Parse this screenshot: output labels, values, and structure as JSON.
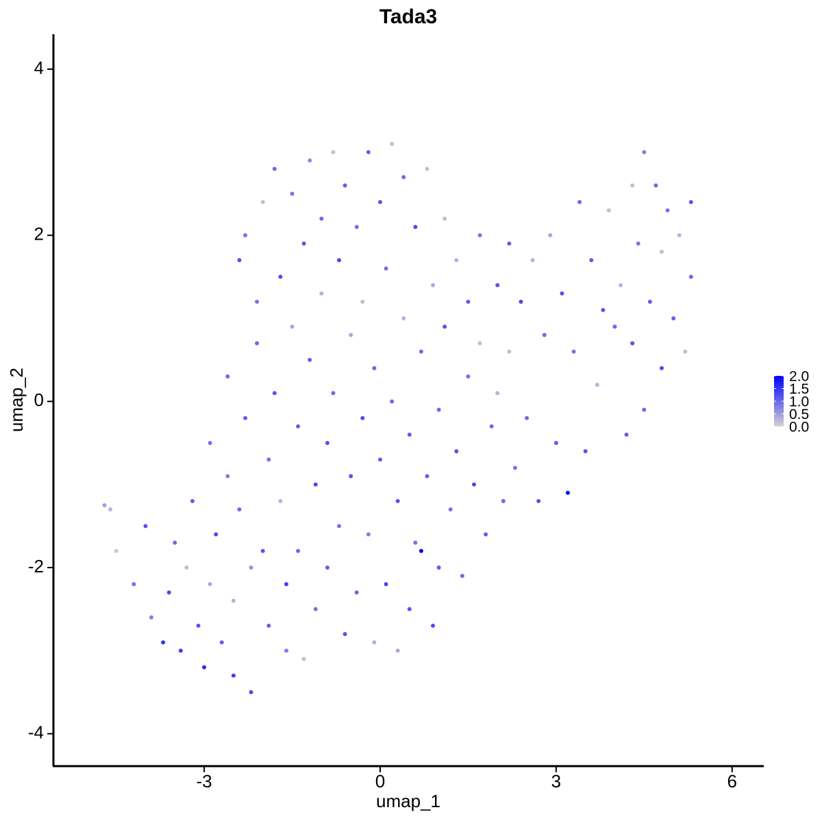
{
  "chart_data": {
    "type": "scatter",
    "title": "Tada3",
    "x_label": "umap_1",
    "y_label": "umap_2",
    "xlim": [
      -5.57,
      6.54
    ],
    "ylim": [
      -4.39,
      4.42
    ],
    "xticks": [
      -3,
      0,
      3,
      6
    ],
    "yticks": [
      -4,
      -2,
      0,
      2,
      4
    ],
    "x": [
      -4.7,
      -4.6,
      -4.5,
      -4.2,
      -4.0,
      -3.9,
      -3.7,
      -3.6,
      -3.5,
      -3.4,
      -3.3,
      -3.2,
      -3.1,
      -3.0,
      -2.9,
      -2.9,
      -2.8,
      -2.7,
      -2.6,
      -2.6,
      -2.5,
      -2.5,
      -2.4,
      -2.4,
      -2.3,
      -2.3,
      -2.2,
      -2.2,
      -2.1,
      -2.1,
      -2.0,
      -2.0,
      -1.9,
      -1.9,
      -1.8,
      -1.8,
      -1.7,
      -1.7,
      -1.6,
      -1.6,
      -1.5,
      -1.5,
      -1.4,
      -1.4,
      -1.3,
      -1.3,
      -1.2,
      -1.2,
      -1.1,
      -1.1,
      -1.0,
      -1.0,
      -0.9,
      -0.9,
      -0.8,
      -0.8,
      -0.7,
      -0.7,
      -0.6,
      -0.6,
      -0.5,
      -0.5,
      -0.4,
      -0.4,
      -0.3,
      -0.3,
      -0.2,
      -0.2,
      -0.1,
      -0.1,
      0.0,
      0.0,
      0.1,
      0.1,
      0.2,
      0.2,
      0.3,
      0.3,
      0.4,
      0.4,
      0.5,
      0.5,
      0.6,
      0.6,
      0.7,
      0.7,
      0.8,
      0.8,
      0.9,
      0.9,
      1.0,
      1.0,
      1.1,
      1.1,
      1.2,
      1.3,
      1.3,
      1.4,
      1.5,
      1.5,
      1.6,
      1.7,
      1.7,
      1.8,
      1.9,
      2.0,
      2.0,
      2.1,
      2.2,
      2.2,
      2.3,
      2.4,
      2.5,
      2.6,
      2.7,
      2.8,
      2.9,
      3.0,
      3.1,
      3.2,
      3.3,
      3.4,
      3.5,
      3.6,
      3.7,
      3.8,
      3.9,
      4.0,
      4.1,
      4.2,
      4.3,
      4.3,
      4.4,
      4.5,
      4.5,
      4.6,
      4.7,
      4.8,
      4.8,
      4.9,
      5.0,
      5.1,
      5.2,
      5.3,
      5.3
    ],
    "y": [
      -1.25,
      -1.3,
      -1.8,
      -2.2,
      -1.5,
      -2.6,
      -2.9,
      -2.3,
      -1.7,
      -3.0,
      -2.0,
      -1.2,
      -2.7,
      -3.2,
      -0.5,
      -2.2,
      -1.6,
      -2.9,
      0.3,
      -0.9,
      -3.3,
      -2.4,
      1.7,
      -1.3,
      2.0,
      -0.2,
      -3.5,
      -2.0,
      1.2,
      0.7,
      2.4,
      -1.8,
      -2.7,
      -0.7,
      2.8,
      0.1,
      1.5,
      -1.2,
      -3.0,
      -2.2,
      2.5,
      0.9,
      -0.3,
      -1.8,
      1.9,
      -3.1,
      2.9,
      0.5,
      -1.0,
      -2.5,
      2.2,
      1.3,
      -0.5,
      -2.0,
      3.0,
      0.1,
      1.7,
      -1.5,
      -2.8,
      2.6,
      0.8,
      -0.9,
      2.1,
      -2.3,
      1.2,
      -0.2,
      3.0,
      -1.6,
      0.4,
      -2.9,
      2.4,
      -0.7,
      1.6,
      -2.2,
      3.1,
      0.0,
      -1.2,
      -3.0,
      2.7,
      1.0,
      -0.4,
      -2.5,
      2.1,
      -1.7,
      0.6,
      -1.8,
      2.8,
      -0.9,
      1.4,
      -2.7,
      -0.1,
      -2.0,
      2.2,
      0.9,
      -1.3,
      1.7,
      -0.6,
      -2.1,
      0.3,
      1.2,
      -1.0,
      2.0,
      0.7,
      -1.6,
      -0.3,
      1.4,
      0.1,
      -1.2,
      1.9,
      0.6,
      -0.8,
      1.2,
      -0.2,
      1.7,
      -1.2,
      0.8,
      2.0,
      -0.5,
      1.3,
      -1.1,
      0.6,
      2.4,
      -0.6,
      1.7,
      0.2,
      1.1,
      2.3,
      0.9,
      1.4,
      -0.4,
      2.6,
      0.7,
      1.9,
      3.0,
      -0.1,
      1.2,
      2.6,
      0.4,
      1.8,
      2.3,
      1.0,
      2.0,
      0.6,
      2.4,
      1.5
    ],
    "values": [
      0.5,
      0.3,
      0.1,
      0.9,
      1.2,
      0.8,
      1.5,
      1.3,
      1.0,
      1.4,
      0.2,
      1.1,
      1.2,
      1.6,
      0.9,
      0.4,
      1.3,
      1.1,
      1.0,
      0.8,
      1.4,
      0.3,
      1.2,
      1.0,
      0.9,
      1.1,
      1.3,
      0.6,
      0.9,
      1.0,
      0.2,
      1.2,
      1.1,
      0.9,
      1.0,
      1.2,
      1.3,
      0.3,
      0.8,
      1.4,
      0.9,
      0.4,
      1.1,
      1.0,
      1.2,
      0.2,
      0.7,
      1.1,
      1.3,
      0.9,
      1.0,
      0.3,
      1.2,
      1.1,
      0.2,
      1.0,
      1.3,
      0.9,
      1.2,
      1.1,
      0.4,
      1.2,
      0.9,
      1.0,
      0.2,
      1.3,
      1.1,
      0.8,
      1.0,
      0.3,
      1.2,
      1.1,
      0.9,
      1.3,
      0.2,
      1.0,
      1.2,
      0.4,
      1.0,
      0.3,
      1.1,
      1.2,
      1.3,
      0.9,
      1.0,
      2.0,
      0.2,
      1.1,
      0.4,
      1.3,
      1.0,
      1.1,
      0.2,
      1.2,
      0.9,
      0.3,
      1.2,
      1.0,
      0.9,
      1.1,
      1.3,
      0.9,
      0.2,
      1.1,
      1.0,
      1.2,
      0.3,
      1.0,
      1.1,
      0.2,
      0.9,
      1.3,
      1.0,
      0.3,
      1.2,
      1.0,
      0.4,
      1.1,
      1.2,
      1.9,
      0.9,
      1.0,
      1.2,
      1.1,
      0.3,
      1.2,
      0.2,
      1.0,
      0.3,
      1.1,
      0.2,
      1.2,
      0.9,
      0.8,
      1.0,
      1.1,
      1.0,
      1.3,
      0.2,
      0.9,
      1.1,
      0.3,
      0.2,
      1.2,
      1.0
    ],
    "color_scale": {
      "lim": [
        0,
        2
      ],
      "colors": [
        "#d3d3d3",
        "#0000ff"
      ],
      "ticks": [
        {
          "value": 0,
          "label": "0.0"
        },
        {
          "value": 0.5,
          "label": "0.5"
        },
        {
          "value": 1,
          "label": "1.0"
        },
        {
          "value": 1.5,
          "label": "1.5"
        },
        {
          "value": 2,
          "label": "2.0"
        }
      ]
    }
  }
}
